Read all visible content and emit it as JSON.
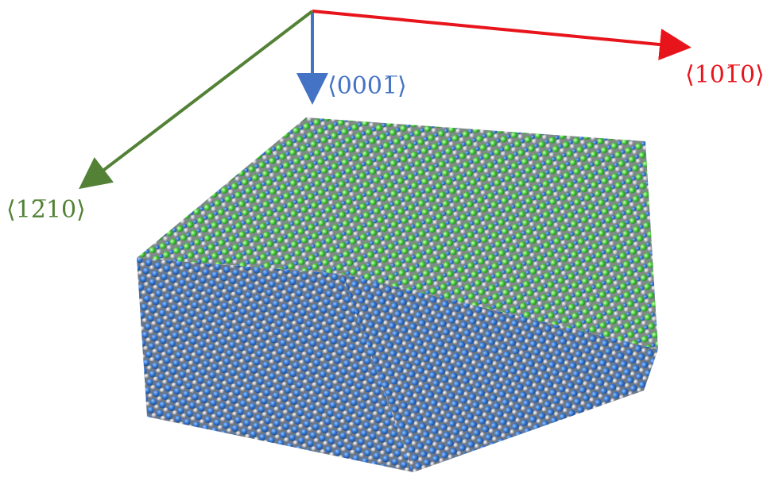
{
  "axes": {
    "vertical": {
      "label": "⟨0001̅⟩",
      "color": "#4472c4"
    },
    "right": {
      "label": "⟨101̅0⟩",
      "color": "#e8141b"
    },
    "left": {
      "label": "⟨12̅10⟩",
      "color": "#538135"
    }
  }
}
